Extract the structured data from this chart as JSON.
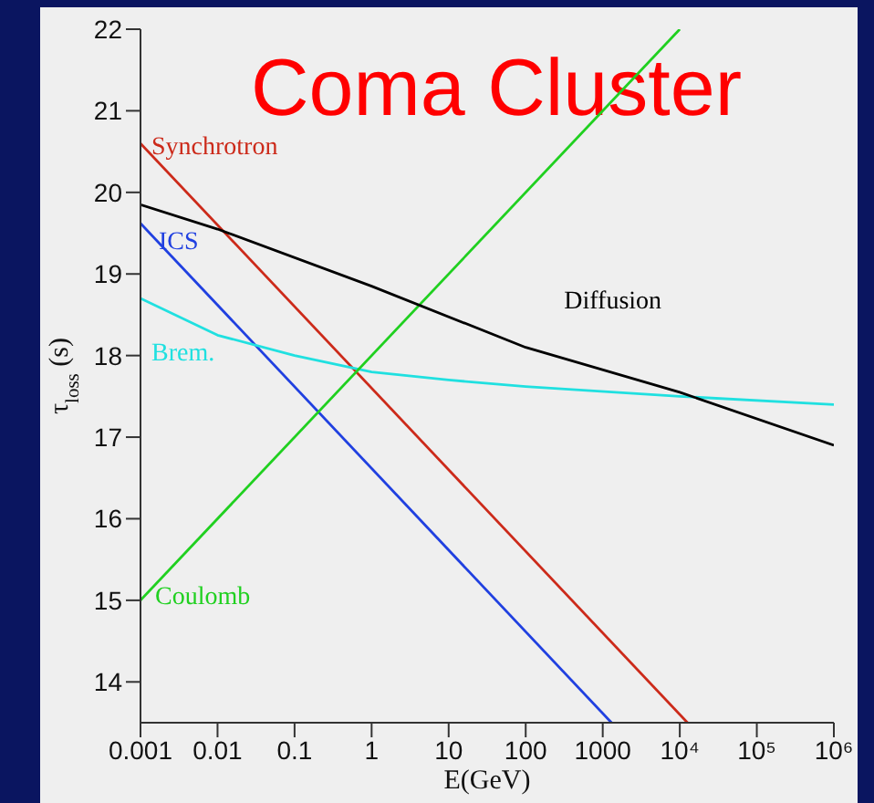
{
  "chart_data": {
    "type": "line",
    "title": "Coma Cluster",
    "xlabel": "E(GeV)",
    "ylabel": "τ$_{loss}$ (s)",
    "log": "x",
    "xlim": [
      0.001,
      1000000
    ],
    "xticks": [
      0.001,
      0.01,
      0.1,
      1,
      10,
      100,
      1000,
      {
        "value": 10000,
        "label": "10⁴"
      },
      {
        "value": 100000,
        "label": "10⁵"
      },
      {
        "value": 1000000,
        "label": "10⁶"
      }
    ],
    "ylim": [
      13.5,
      22
    ],
    "yticks": [
      14,
      15,
      16,
      17,
      18,
      19,
      20,
      21,
      22
    ],
    "grid": false,
    "legend": false,
    "line_style": "solid",
    "marker": "none",
    "series": [
      {
        "name": "Synchrotron",
        "color": "#cc2a1a",
        "x": [
          0.001,
          12600
        ],
        "values": [
          20.6,
          13.5
        ]
      },
      {
        "name": "ICS",
        "color": "#2040e0",
        "x": [
          0.001,
          1300
        ],
        "values": [
          19.62,
          13.5
        ]
      },
      {
        "name": "Brem.",
        "color": "#20e0e0",
        "x": [
          0.001,
          0.01,
          0.1,
          1,
          10,
          100,
          10000,
          1000000
        ],
        "values": [
          18.7,
          18.25,
          18.0,
          17.8,
          17.7,
          17.62,
          17.5,
          17.4
        ]
      },
      {
        "name": "Coulomb",
        "color": "#20d020",
        "x": [
          0.001,
          10000
        ],
        "values": [
          15.0,
          22.0
        ]
      },
      {
        "name": "Diffusion",
        "color": "#000000",
        "x": [
          0.001,
          0.01,
          1,
          100,
          10000,
          1000000
        ],
        "values": [
          19.85,
          19.55,
          18.85,
          18.1,
          17.55,
          16.9
        ]
      }
    ]
  }
}
